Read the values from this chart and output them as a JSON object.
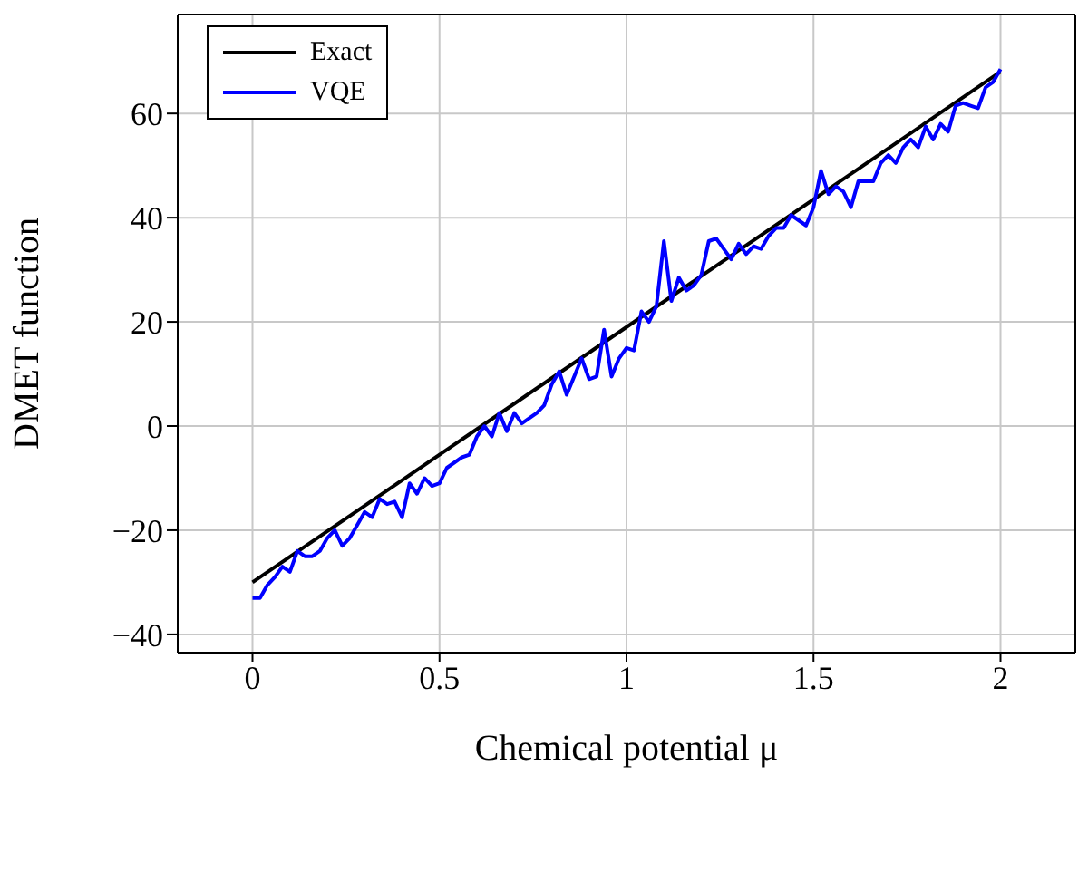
{
  "chart_data": {
    "type": "line",
    "xlabel": "Chemical potential μ",
    "ylabel": "DMET function",
    "xlim": [
      -0.2,
      2.2
    ],
    "xticks": [
      0,
      0.5,
      1,
      1.5,
      2
    ],
    "ylim": [
      -43.5,
      79
    ],
    "yticks": [
      -40,
      -20,
      0,
      20,
      40,
      60
    ],
    "grid": true,
    "legend": "top left",
    "marker": "none",
    "line_style": "solid",
    "series": [
      {
        "name": "Exact",
        "color": "#000000",
        "x": [
          0,
          2
        ],
        "values": [
          -30,
          68
        ]
      },
      {
        "name": "VQE",
        "color": "#0000ff",
        "x": [
          0,
          0.02,
          0.04,
          0.06,
          0.08,
          0.1,
          0.12,
          0.14,
          0.16,
          0.18,
          0.2,
          0.22,
          0.24,
          0.26,
          0.28,
          0.3,
          0.32,
          0.34,
          0.36,
          0.38,
          0.4,
          0.42,
          0.44,
          0.46,
          0.48,
          0.5,
          0.52,
          0.54,
          0.56,
          0.58,
          0.6,
          0.62,
          0.64,
          0.66,
          0.68,
          0.7,
          0.72,
          0.74,
          0.76,
          0.78,
          0.8,
          0.82,
          0.84,
          0.86,
          0.88,
          0.9,
          0.92,
          0.94,
          0.96,
          0.98,
          1.0,
          1.02,
          1.04,
          1.06,
          1.08,
          1.1,
          1.12,
          1.14,
          1.16,
          1.18,
          1.2,
          1.22,
          1.24,
          1.26,
          1.28,
          1.3,
          1.32,
          1.34,
          1.36,
          1.38,
          1.4,
          1.42,
          1.44,
          1.46,
          1.48,
          1.5,
          1.52,
          1.54,
          1.56,
          1.58,
          1.6,
          1.62,
          1.64,
          1.66,
          1.68,
          1.7,
          1.72,
          1.74,
          1.76,
          1.78,
          1.8,
          1.82,
          1.84,
          1.86,
          1.88,
          1.9,
          1.92,
          1.94,
          1.96,
          1.98,
          2.0
        ],
        "values": [
          -33,
          -33,
          -30.5,
          -29,
          -27,
          -28,
          -24,
          -25,
          -25,
          -24,
          -21.5,
          -20,
          -23,
          -21.5,
          -19,
          -16.5,
          -17.5,
          -14,
          -15,
          -14.5,
          -17.5,
          -11,
          -13,
          -10,
          -11.5,
          -11,
          -8,
          -7,
          -6,
          -5.5,
          -2,
          0,
          -2,
          2.5,
          -1,
          2.5,
          0.5,
          1.5,
          2.5,
          4,
          8,
          10.5,
          6,
          9.5,
          13,
          9,
          9.5,
          18.5,
          9.5,
          13,
          15,
          14.5,
          22,
          20,
          23,
          35.5,
          24,
          28.5,
          26,
          27,
          29,
          35.5,
          36,
          34,
          32,
          35,
          33,
          34.5,
          34,
          36.5,
          38,
          38,
          40.5,
          39.5,
          38.5,
          42,
          49,
          44.5,
          46,
          45,
          42,
          47,
          47,
          47,
          50.5,
          52,
          50.5,
          53.5,
          55,
          53.5,
          57.5,
          55,
          58,
          56.5,
          61.5,
          62,
          61.5,
          61,
          65,
          66,
          68.5
        ]
      }
    ]
  }
}
